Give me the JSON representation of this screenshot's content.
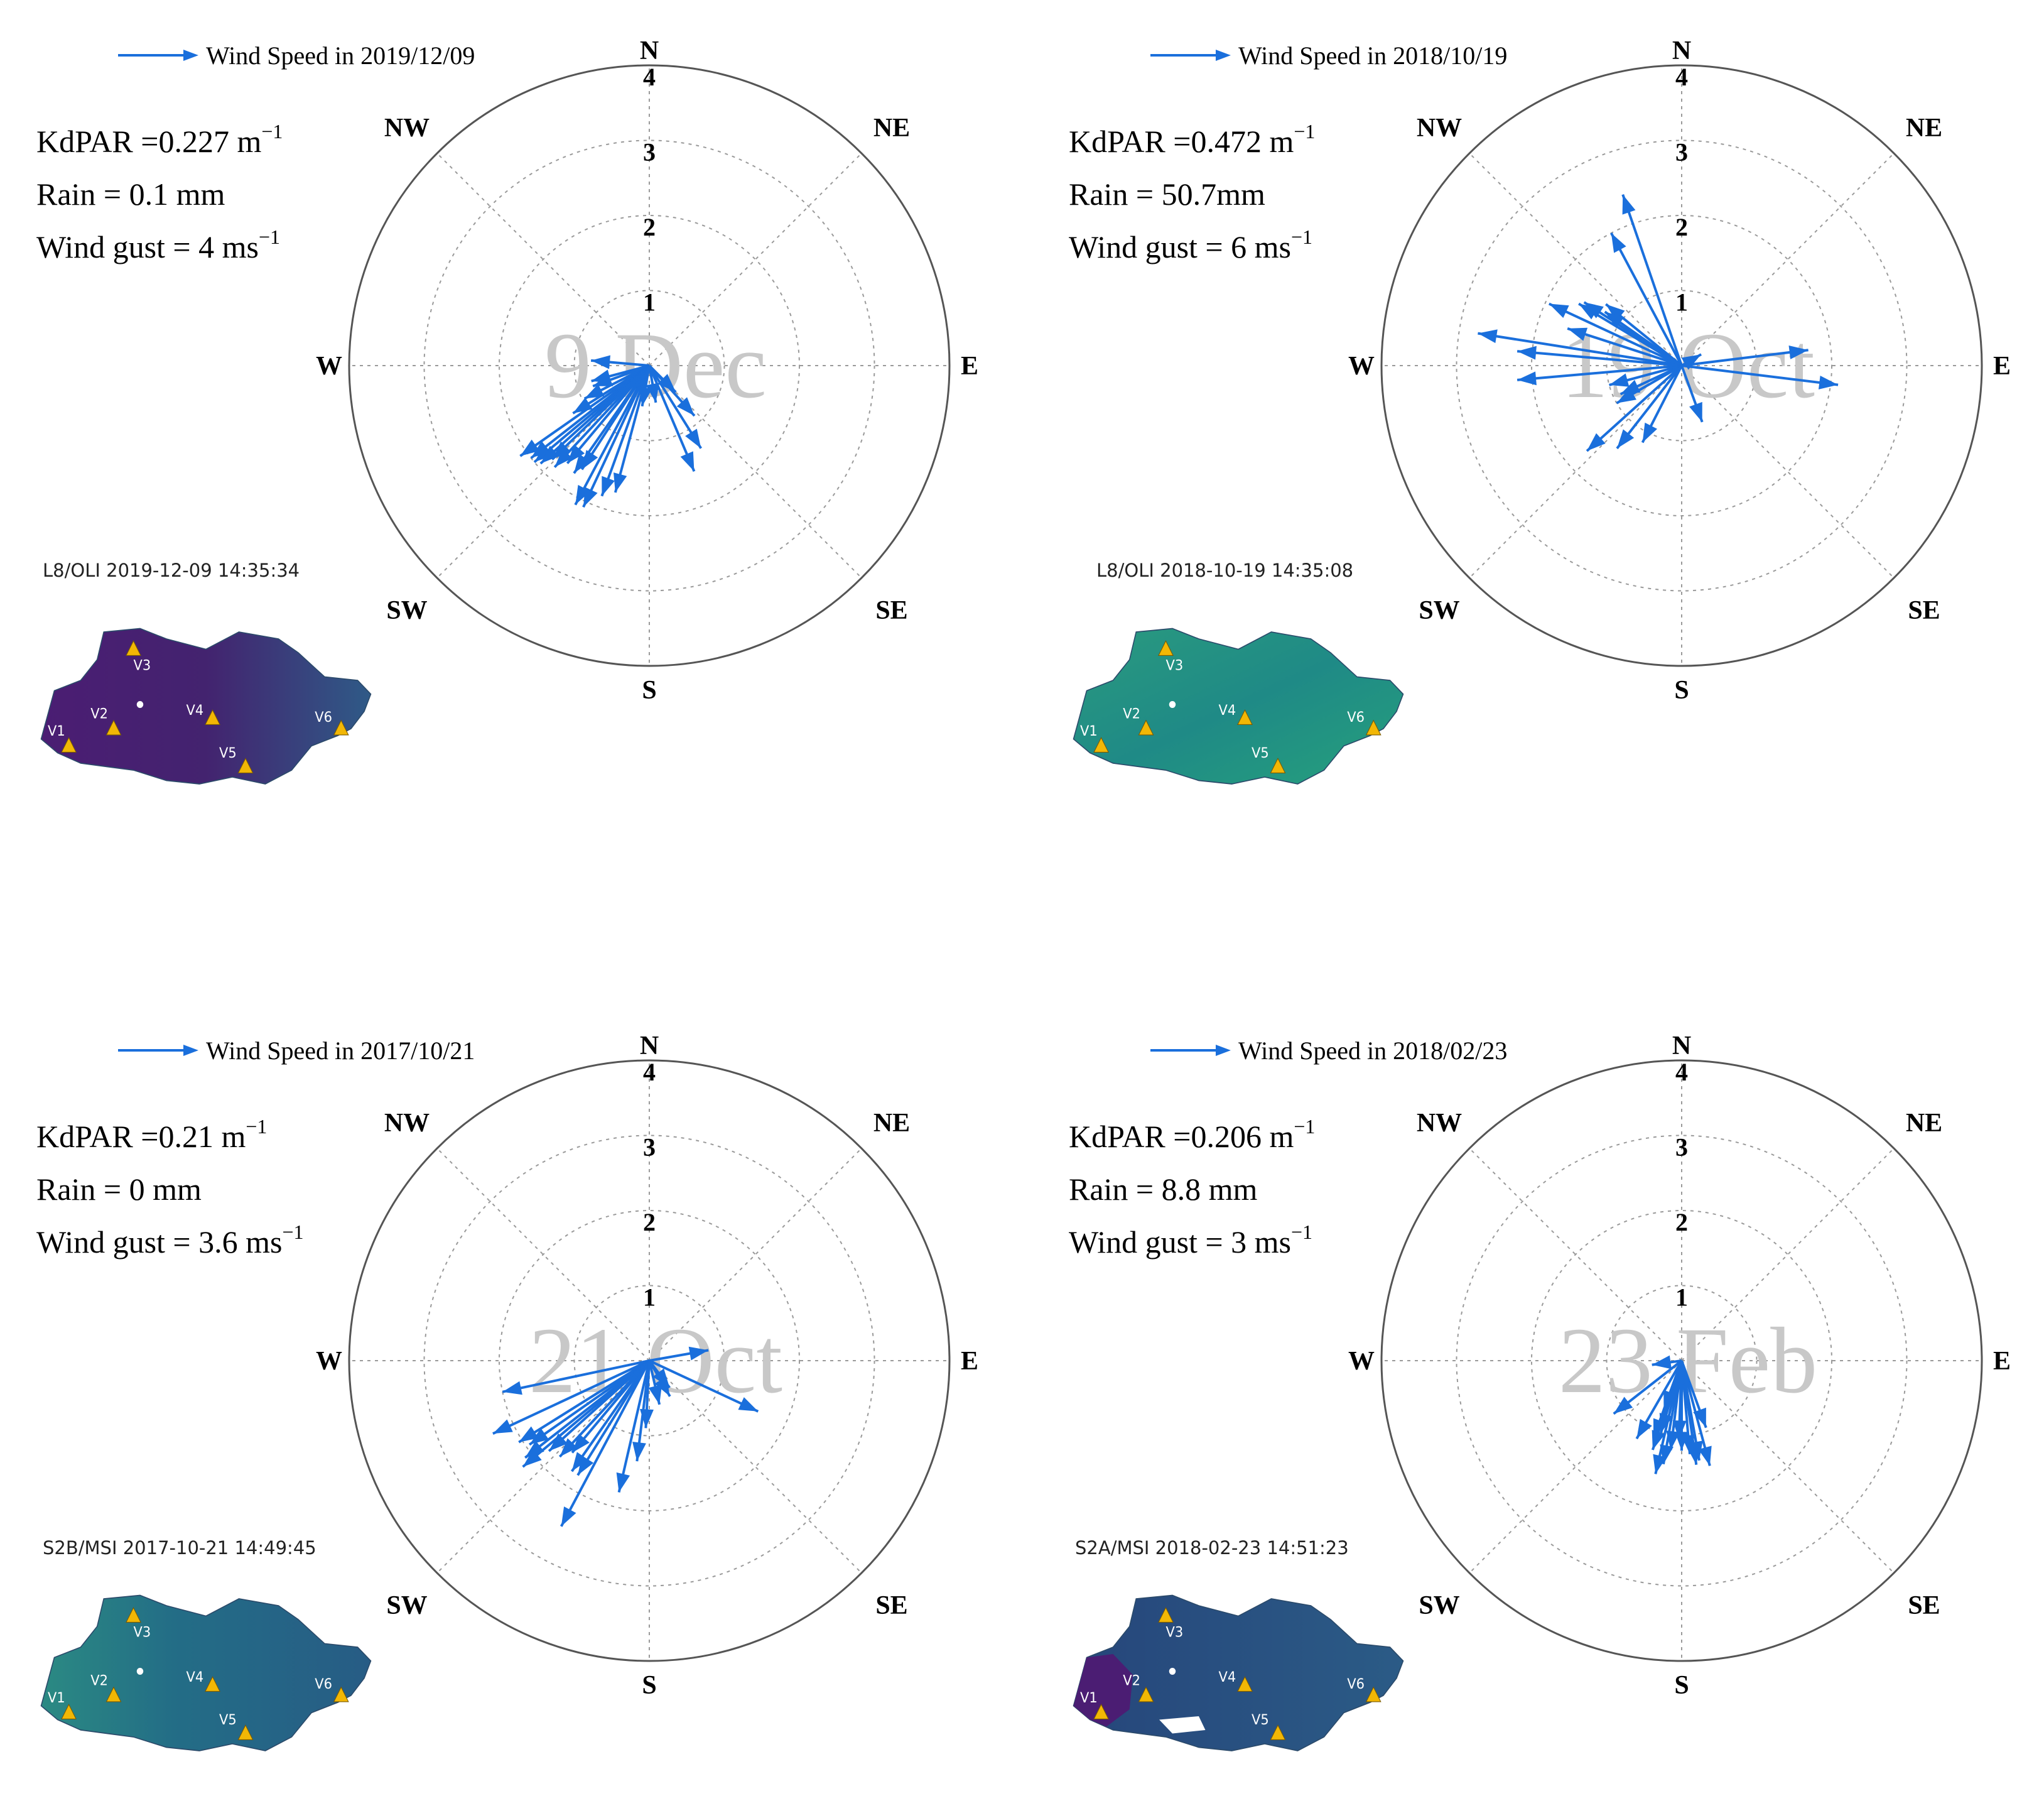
{
  "colors": {
    "arrow": "#1a6fdc",
    "grid": "#9a9a9a",
    "watermark": "#c8c8c8",
    "site_marker": "#f2b705",
    "map_purple": "#4b1d73",
    "map_teal": "#1f8f86",
    "map_navy": "#284b7a"
  },
  "chart_data": [
    {
      "type": "polar-vector",
      "legend": "Wind Speed in 2019/12/09",
      "watermark": "9 Dec",
      "stats": {
        "kd": "KdPAR =0.227 m",
        "kd_sup": "−1",
        "rain": "Rain = 0.1 mm",
        "gust": "Wind gust = 4 ms",
        "gust_sup": "−1"
      },
      "rlim": [
        0,
        4
      ],
      "ring_labels": [
        "1",
        "2",
        "3",
        "4"
      ],
      "compass": {
        "N": "N",
        "NE": "NE",
        "E": "E",
        "SE": "SE",
        "S": "S",
        "SW": "SW",
        "W": "W",
        "NW": "NW"
      },
      "vectors_dir_speed": [
        [
          275,
          0.78
        ],
        [
          255,
          0.8
        ],
        [
          250,
          0.8
        ],
        [
          243,
          0.97
        ],
        [
          238,
          1.2
        ],
        [
          235,
          2.1
        ],
        [
          232,
          2.0
        ],
        [
          230,
          2.0
        ],
        [
          228,
          1.95
        ],
        [
          226,
          1.8
        ],
        [
          223,
          1.85
        ],
        [
          220,
          1.7
        ],
        [
          215,
          1.75
        ],
        [
          213,
          1.65
        ],
        [
          208,
          2.1
        ],
        [
          205,
          2.08
        ],
        [
          200,
          1.85
        ],
        [
          195,
          1.75
        ],
        [
          190,
          0.55
        ],
        [
          170,
          0.5
        ],
        [
          157,
          1.53
        ],
        [
          148,
          1.3
        ],
        [
          138,
          0.9
        ],
        [
          135,
          0.5
        ]
      ],
      "map": {
        "caption": "L8/OLI 2019-12-09 14:35:34",
        "sites": [
          "V1",
          "V2",
          "V3",
          "V4",
          "V5",
          "V6"
        ]
      }
    },
    {
      "type": "polar-vector",
      "legend": "Wind Speed in 2018/10/19",
      "watermark": "19 Oct",
      "stats": {
        "kd": "KdPAR =0.472 m",
        "kd_sup": "−1",
        "rain": "Rain = 50.7mm",
        "gust": "Wind gust = 6 ms",
        "gust_sup": "−1"
      },
      "rlim": [
        0,
        4
      ],
      "ring_labels": [
        "1",
        "2",
        "3",
        "4"
      ],
      "compass": {
        "N": "N",
        "NE": "NE",
        "E": "E",
        "SE": "SE",
        "S": "S",
        "SW": "SW",
        "W": "W",
        "NW": "NW"
      },
      "vectors_dir_speed": [
        [
          341,
          2.41
        ],
        [
          332,
          2.0
        ],
        [
          309,
          1.3
        ],
        [
          305,
          1.25
        ],
        [
          303,
          1.55
        ],
        [
          301,
          1.6
        ],
        [
          295,
          1.95
        ],
        [
          288,
          1.6
        ],
        [
          279,
          2.75
        ],
        [
          275,
          2.2
        ],
        [
          265,
          2.2
        ],
        [
          255,
          1.0
        ],
        [
          245,
          0.9
        ],
        [
          240,
          1.0
        ],
        [
          228,
          1.7
        ],
        [
          218,
          1.4
        ],
        [
          207,
          1.15
        ],
        [
          160,
          0.8
        ],
        [
          83,
          1.7
        ],
        [
          97,
          2.1
        ],
        [
          60,
          0.3
        ]
      ],
      "map": {
        "caption": "L8/OLI 2018-10-19 14:35:08",
        "sites": [
          "V1",
          "V2",
          "V3",
          "V4",
          "V5",
          "V6"
        ]
      }
    },
    {
      "type": "polar-vector",
      "legend": "Wind Speed in 2017/10/21",
      "watermark": "21 Oct",
      "stats": {
        "kd": "KdPAR =0.21 m",
        "kd_sup": "−1",
        "rain": "Rain = 0 mm",
        "gust": "Wind gust = 3.6 ms",
        "gust_sup": "−1"
      },
      "rlim": [
        0,
        4
      ],
      "ring_labels": [
        "1",
        "2",
        "3",
        "4"
      ],
      "compass": {
        "N": "N",
        "NE": "NE",
        "E": "E",
        "SE": "SE",
        "S": "S",
        "SW": "SW",
        "W": "W",
        "NW": "NW"
      },
      "vectors_dir_speed": [
        [
          258,
          2.0
        ],
        [
          245,
          2.3
        ],
        [
          238,
          2.05
        ],
        [
          235,
          1.95
        ],
        [
          232,
          2.1
        ],
        [
          230,
          2.2
        ],
        [
          228,
          1.8
        ],
        [
          223,
          1.75
        ],
        [
          220,
          1.6
        ],
        [
          215,
          1.8
        ],
        [
          212,
          1.8
        ],
        [
          208,
          2.5
        ],
        [
          193,
          1.8
        ],
        [
          187,
          1.35
        ],
        [
          183,
          0.9
        ],
        [
          167,
          0.6
        ],
        [
          150,
          0.55
        ],
        [
          143,
          0.45
        ],
        [
          80,
          0.8
        ],
        [
          115,
          1.6
        ]
      ],
      "map": {
        "caption": "S2B/MSI 2017-10-21 14:49:45",
        "sites": [
          "V1",
          "V2",
          "V3",
          "V4",
          "V5",
          "V6"
        ]
      }
    },
    {
      "type": "polar-vector",
      "legend": "Wind Speed in 2018/02/23",
      "watermark": "23 Feb",
      "stats": {
        "kd": "KdPAR =0.206 m",
        "kd_sup": "−1",
        "rain": "Rain = 8.8 mm",
        "gust": "Wind gust = 3 ms",
        "gust_sup": "−1"
      },
      "rlim": [
        0,
        4
      ],
      "ring_labels": [
        "1",
        "2",
        "3",
        "4"
      ],
      "compass": {
        "N": "N",
        "NE": "NE",
        "E": "E",
        "SE": "SE",
        "S": "S",
        "SW": "SW",
        "W": "W",
        "NW": "NW"
      },
      "vectors_dir_speed": [
        [
          262,
          0.4
        ],
        [
          232,
          1.15
        ],
        [
          210,
          1.2
        ],
        [
          200,
          1.1
        ],
        [
          198,
          1.25
        ],
        [
          196,
          1.0
        ],
        [
          193,
          1.55
        ],
        [
          190,
          1.4
        ],
        [
          187,
          1.2
        ],
        [
          182,
          1.05
        ],
        [
          180,
          1.2
        ],
        [
          175,
          1.25
        ],
        [
          172,
          1.4
        ],
        [
          170,
          1.35
        ],
        [
          165,
          1.45
        ],
        [
          160,
          0.95
        ],
        [
          200,
          0.7
        ]
      ],
      "map": {
        "caption": "S2A/MSI 2018-02-23 14:51:23",
        "sites": [
          "V1",
          "V2",
          "V3",
          "V4",
          "V5",
          "V6"
        ]
      }
    }
  ]
}
